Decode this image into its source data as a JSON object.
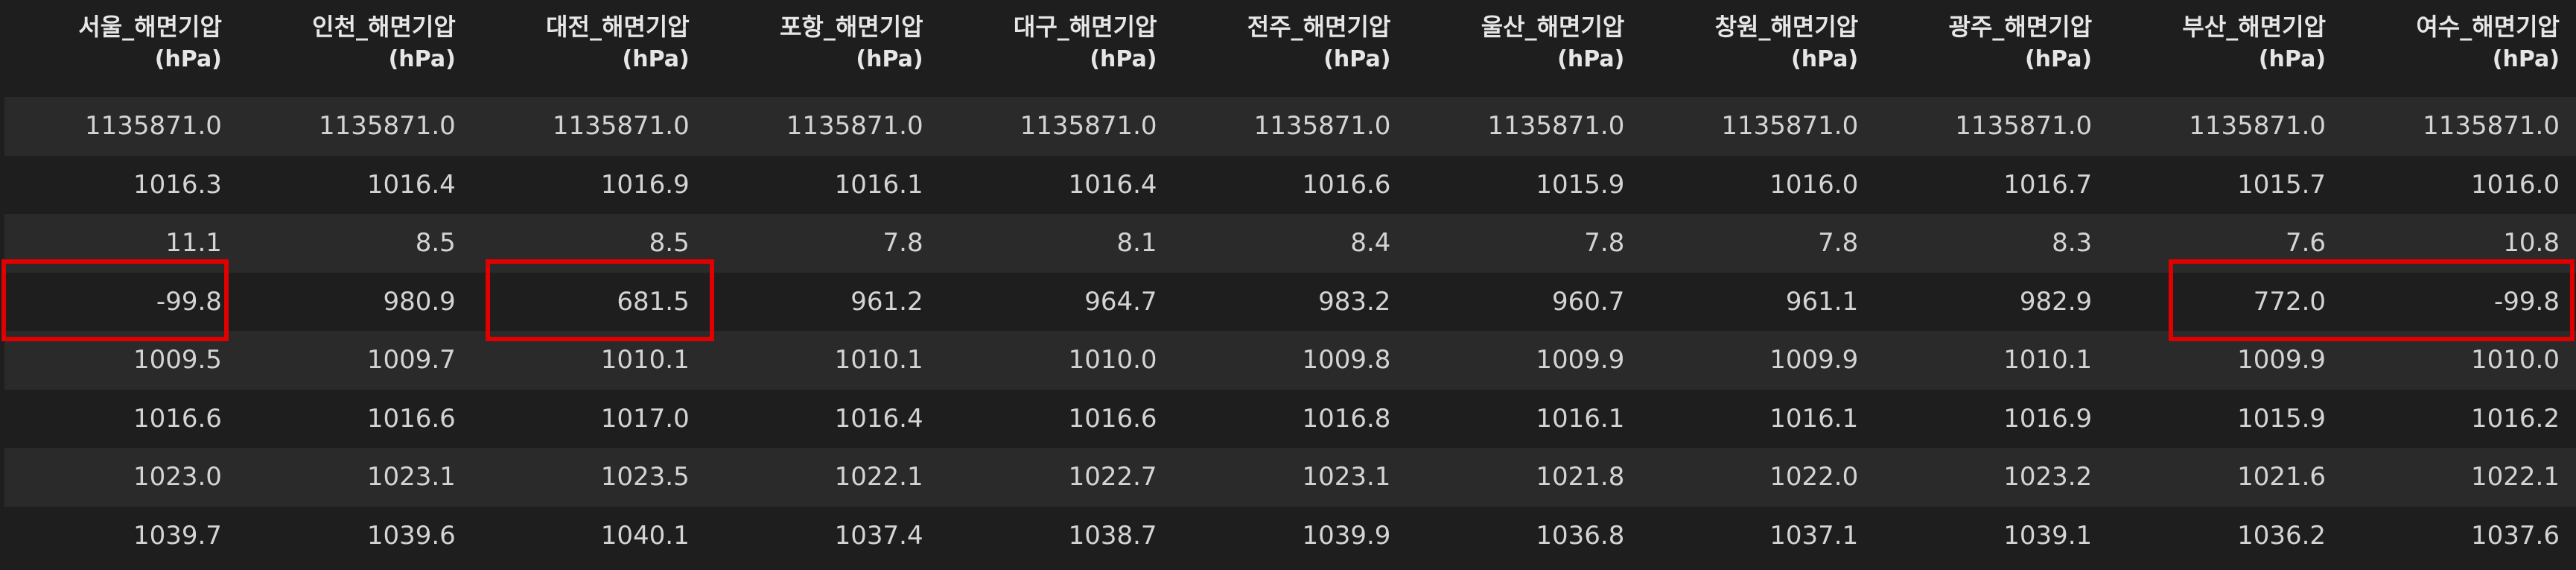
{
  "columns": [
    {
      "name": "서울_해면기압",
      "unit": "(hPa)"
    },
    {
      "name": "인천_해면기압",
      "unit": "(hPa)"
    },
    {
      "name": "대전_해면기압",
      "unit": "(hPa)"
    },
    {
      "name": "포항_해면기압",
      "unit": "(hPa)"
    },
    {
      "name": "대구_해면기압",
      "unit": "(hPa)"
    },
    {
      "name": "전주_해면기압",
      "unit": "(hPa)"
    },
    {
      "name": "울산_해면기압",
      "unit": "(hPa)"
    },
    {
      "name": "창원_해면기압",
      "unit": "(hPa)"
    },
    {
      "name": "광주_해면기압",
      "unit": "(hPa)"
    },
    {
      "name": "부산_해면기압",
      "unit": "(hPa)"
    },
    {
      "name": "여수_해면기압",
      "unit": "(hPa)"
    }
  ],
  "rows": [
    [
      "1135871.0",
      "1135871.0",
      "1135871.0",
      "1135871.0",
      "1135871.0",
      "1135871.0",
      "1135871.0",
      "1135871.0",
      "1135871.0",
      "1135871.0",
      "1135871.0"
    ],
    [
      "1016.3",
      "1016.4",
      "1016.9",
      "1016.1",
      "1016.4",
      "1016.6",
      "1015.9",
      "1016.0",
      "1016.7",
      "1015.7",
      "1016.0"
    ],
    [
      "11.1",
      "8.5",
      "8.5",
      "7.8",
      "8.1",
      "8.4",
      "7.8",
      "7.8",
      "8.3",
      "7.6",
      "10.8"
    ],
    [
      "-99.8",
      "980.9",
      "681.5",
      "961.2",
      "964.7",
      "983.2",
      "960.7",
      "961.1",
      "982.9",
      "772.0",
      "-99.8"
    ],
    [
      "1009.5",
      "1009.7",
      "1010.1",
      "1010.1",
      "1010.0",
      "1009.8",
      "1009.9",
      "1009.9",
      "1010.1",
      "1009.9",
      "1010.0"
    ],
    [
      "1016.6",
      "1016.6",
      "1017.0",
      "1016.4",
      "1016.6",
      "1016.8",
      "1016.1",
      "1016.1",
      "1016.9",
      "1015.9",
      "1016.2"
    ],
    [
      "1023.0",
      "1023.1",
      "1023.5",
      "1022.1",
      "1022.7",
      "1023.1",
      "1021.8",
      "1022.0",
      "1023.2",
      "1021.6",
      "1022.1"
    ],
    [
      "1039.7",
      "1039.6",
      "1040.1",
      "1037.4",
      "1038.7",
      "1039.9",
      "1036.8",
      "1037.1",
      "1039.1",
      "1036.2",
      "1037.6"
    ]
  ],
  "highlight_color": "#e00000"
}
